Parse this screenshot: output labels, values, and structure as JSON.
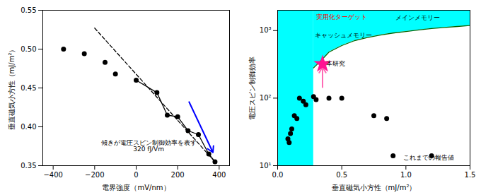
{
  "chart_data": [
    {
      "type": "scatter",
      "xlabel": "電界強度（mV/nm）",
      "ylabel": "垂直磁気小方性（mJ/m²）",
      "xlim": [
        -450,
        450
      ],
      "ylim": [
        0.35,
        0.55
      ],
      "xticks": [
        -400,
        -200,
        0,
        200,
        400
      ],
      "yticks": [
        0.35,
        {
          "value": 0.4,
          "label": "0.40"
        },
        0.45,
        {
          "value": 0.5,
          "label": "0.50"
        },
        0.55
      ],
      "series": [
        {
          "type": "scatter",
          "color": "black",
          "marker": "circle",
          "x": [
            -350,
            -250,
            -150,
            -100,
            0,
            100,
            150,
            200,
            250,
            300,
            350,
            380
          ],
          "values": [
            0.5,
            0.494,
            0.483,
            0.468,
            0.46,
            0.444,
            0.415,
            0.413,
            0.395,
            0.39,
            0.365,
            0.355
          ]
        },
        {
          "type": "line",
          "color": "black",
          "line_style": "dashed",
          "x": [
            -200,
            380
          ],
          "values": [
            0.527,
            0.355
          ]
        },
        {
          "type": "line",
          "color": "black",
          "line_style": "solid",
          "x": [
            0,
            100,
            150,
            200,
            250,
            300,
            350,
            380
          ],
          "values": [
            0.46,
            0.444,
            0.415,
            0.413,
            0.395,
            0.39,
            0.365,
            0.355
          ]
        }
      ],
      "arrows": [
        {
          "from": [
            255,
            0.432
          ],
          "to": [
            370,
            0.367
          ],
          "color": "blue"
        }
      ],
      "annotations": [
        {
          "text": "傾きが電圧スピン制御効率を表す\n320 fJ/Vm",
          "x": 60,
          "y": 0.383,
          "color": "black"
        }
      ]
    },
    {
      "type": "scatter",
      "log": "y",
      "xlabel": "垂直磁気小方性（mJ/m²）",
      "ylabel": "電圧スピン制御効率",
      "xlim": [
        0.0,
        1.5
      ],
      "ylim": [
        10,
        2000
      ],
      "xticks": [
        {
          "value": 0.0,
          "label": "0.0"
        },
        0.5,
        {
          "value": 1.0,
          "label": "1.0"
        },
        1.5
      ],
      "yticks": [
        {
          "value": 10,
          "label": "10¹"
        },
        {
          "value": 100,
          "label": "10²"
        },
        {
          "value": 1000,
          "label": "10³"
        }
      ],
      "series": [
        {
          "type": "area",
          "color": "#00FFFF",
          "x": [
            0.28,
            0.35,
            0.4,
            0.5,
            0.6,
            0.7,
            0.8,
            0.9,
            1.0,
            1.1,
            1.2,
            1.3,
            1.4,
            1.5
          ],
          "values": [
            280,
            380,
            480,
            600,
            710,
            790,
            860,
            920,
            970,
            1020,
            1070,
            1110,
            1150,
            1190
          ]
        },
        {
          "type": "line",
          "color": "#006400",
          "line_style": "solid",
          "x": [
            0.28,
            0.35,
            0.4,
            0.5,
            0.6,
            0.7,
            0.8,
            0.9,
            1.0,
            1.1,
            1.2,
            1.3,
            1.4,
            1.5
          ],
          "values": [
            280,
            380,
            480,
            600,
            710,
            790,
            860,
            920,
            970,
            1020,
            1070,
            1110,
            1150,
            1190
          ]
        },
        {
          "type": "scatter",
          "color": "black",
          "marker": "circle",
          "x": [
            0.08,
            0.09,
            0.1,
            0.11,
            0.13,
            0.15,
            0.17,
            0.2,
            0.22,
            0.28,
            0.3,
            0.4,
            0.5,
            0.75,
            0.85,
            0.9,
            1.2
          ],
          "values": [
            25,
            22,
            30,
            35,
            55,
            50,
            100,
            90,
            80,
            105,
            95,
            100,
            100,
            55,
            50,
            14,
            14
          ]
        },
        {
          "type": "scatter",
          "color": "#FF1493",
          "marker": "star",
          "x": [
            0.35
          ],
          "values": [
            320
          ]
        }
      ],
      "arrows": [
        {
          "from": [
            0.35,
            145
          ],
          "to": [
            0.35,
            290
          ],
          "color": "#FF69B4"
        }
      ],
      "annotations": [
        {
          "text": "実用化ターゲット",
          "x": 0.3,
          "y": 1600,
          "color": "red"
        },
        {
          "text": "メインメモリー",
          "x": 0.92,
          "y": 1550,
          "color": "black"
        },
        {
          "text": "キャッシュメモリー",
          "x": 0.29,
          "y": 850,
          "color": "black"
        },
        {
          "text": "本研究",
          "x": 0.38,
          "y": 320,
          "color": "black"
        },
        {
          "text": "これまでの報告値",
          "x": 0.98,
          "y": 13,
          "color": "black"
        }
      ]
    }
  ]
}
